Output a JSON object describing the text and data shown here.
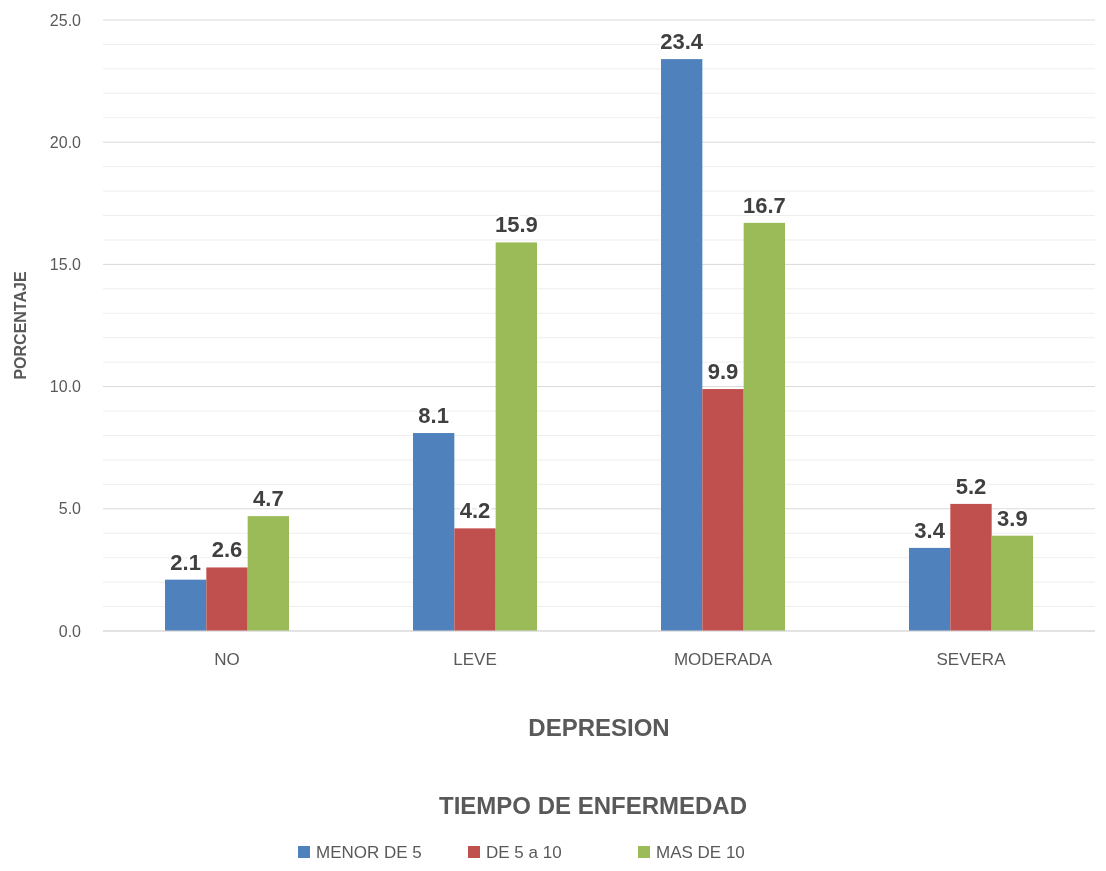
{
  "chart_data": {
    "type": "bar",
    "xlabel": "DEPRESION",
    "ylabel": "PORCENTAJE",
    "legend_title": "TIEMPO DE ENFERMEDAD",
    "legend": "bottom",
    "grid": "y",
    "data_labels": true,
    "categories": [
      "NO",
      "LEVE",
      "MODERADA",
      "SEVERA"
    ],
    "series": [
      {
        "name": "MENOR DE 5",
        "color": "#4f81bd",
        "values": [
          2.1,
          8.1,
          23.4,
          3.4
        ]
      },
      {
        "name": "DE 5 a 10",
        "color": "#c0504d",
        "values": [
          2.6,
          4.2,
          9.9,
          5.2
        ]
      },
      {
        "name": "MAS DE 10",
        "color": "#9bbb59",
        "values": [
          4.7,
          15.9,
          16.7,
          3.9
        ]
      }
    ],
    "ylim": [
      0,
      25
    ],
    "yticks": [
      {
        "value": 0,
        "label": "0.0"
      },
      {
        "value": 1,
        "label": null
      },
      {
        "value": 2,
        "label": null
      },
      {
        "value": 3,
        "label": null
      },
      {
        "value": 4,
        "label": null
      },
      {
        "value": 5,
        "label": "5.0"
      },
      {
        "value": 6,
        "label": null
      },
      {
        "value": 7,
        "label": null
      },
      {
        "value": 8,
        "label": null
      },
      {
        "value": 9,
        "label": null
      },
      {
        "value": 10,
        "label": "10.0"
      },
      {
        "value": 11,
        "label": null
      },
      {
        "value": 12,
        "label": null
      },
      {
        "value": 13,
        "label": null
      },
      {
        "value": 14,
        "label": null
      },
      {
        "value": 15,
        "label": "15.0"
      },
      {
        "value": 16,
        "label": null
      },
      {
        "value": 17,
        "label": null
      },
      {
        "value": 18,
        "label": null
      },
      {
        "value": 19,
        "label": null
      },
      {
        "value": 20,
        "label": "20.0"
      },
      {
        "value": 21,
        "label": null
      },
      {
        "value": 22,
        "label": null
      },
      {
        "value": 23,
        "label": null
      },
      {
        "value": 24,
        "label": null
      },
      {
        "value": 25,
        "label": "25.0"
      }
    ]
  }
}
